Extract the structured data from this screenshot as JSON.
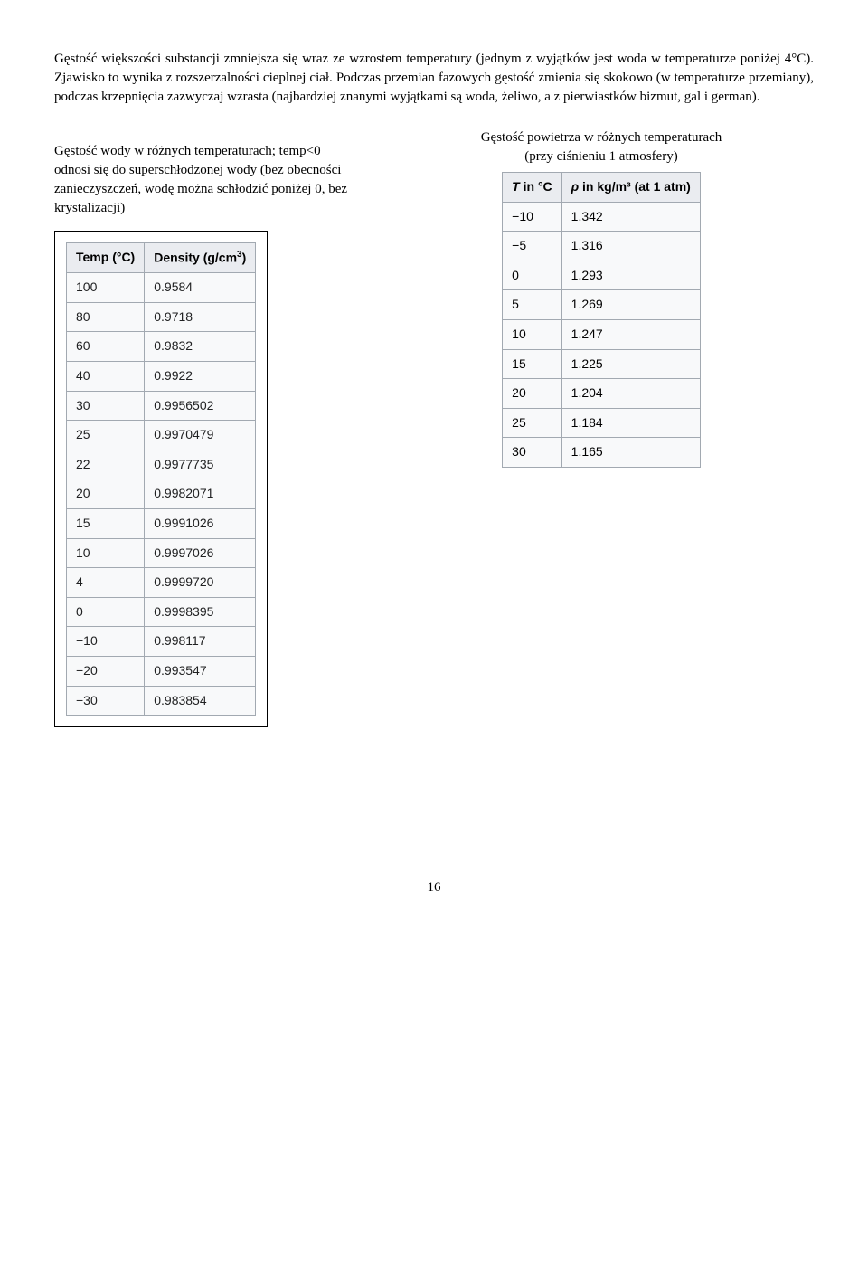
{
  "paragraph1": "Gęstość większości substancji zmniejsza się wraz ze wzrostem temperatury (jednym z wyjątków jest woda w temperaturze poniżej 4°C). Zjawisko to wynika z rozszerzalności cieplnej ciał. Podczas przemian fazowych gęstość zmienia się skokowo (w temperaturze przemiany), podczas krzepnięcia zazwyczaj wzrasta (najbardziej znanymi wyjątkami są woda, żeliwo, a z pierwiastków bizmut, gal i german).",
  "leftCaption": "Gęstość wody w różnych temperaturach; temp<0 odnosi się do superschłodzonej wody (bez obecności zanieczyszczeń, wodę można schłodzić poniżej 0, bez krystalizacji)",
  "rightCaptionLine1": "Gęstość powietrza w różnych temperaturach",
  "rightCaptionLine2": "(przy ciśnieniu 1 atmosfery)",
  "pageNumber": "16",
  "waterTable": {
    "header": {
      "temp": "Temp (°C)",
      "density_prefix": "Density (g/cm",
      "density_sup": "3",
      "density_suffix": ")"
    },
    "rows": [
      {
        "t": "100",
        "d": "0.9584"
      },
      {
        "t": "80",
        "d": "0.9718"
      },
      {
        "t": "60",
        "d": "0.9832"
      },
      {
        "t": "40",
        "d": "0.9922"
      },
      {
        "t": "30",
        "d": "0.9956502"
      },
      {
        "t": "25",
        "d": "0.9970479"
      },
      {
        "t": "22",
        "d": "0.9977735"
      },
      {
        "t": "20",
        "d": "0.9982071"
      },
      {
        "t": "15",
        "d": "0.9991026"
      },
      {
        "t": "10",
        "d": "0.9997026"
      },
      {
        "t": "4",
        "d": "0.9999720"
      },
      {
        "t": "0",
        "d": "0.9998395"
      },
      {
        "t": "−10",
        "d": "0.998117"
      },
      {
        "t": "−20",
        "d": "0.993547"
      },
      {
        "t": "−30",
        "d": "0.983854"
      }
    ]
  },
  "airTable": {
    "header": {
      "t_prefix": "T",
      "t_suffix": " in °C",
      "rho_prefix": "ρ",
      "rho_suffix": " in kg/m³ (at 1 atm)"
    },
    "rows": [
      {
        "t": "−10",
        "r": "1.342"
      },
      {
        "t": "−5",
        "r": "1.316"
      },
      {
        "t": "0",
        "r": "1.293"
      },
      {
        "t": "5",
        "r": "1.269"
      },
      {
        "t": "10",
        "r": "1.247"
      },
      {
        "t": "15",
        "r": "1.225"
      },
      {
        "t": "20",
        "r": "1.204"
      },
      {
        "t": "25",
        "r": "1.184"
      },
      {
        "t": "30",
        "r": "1.165"
      }
    ]
  }
}
